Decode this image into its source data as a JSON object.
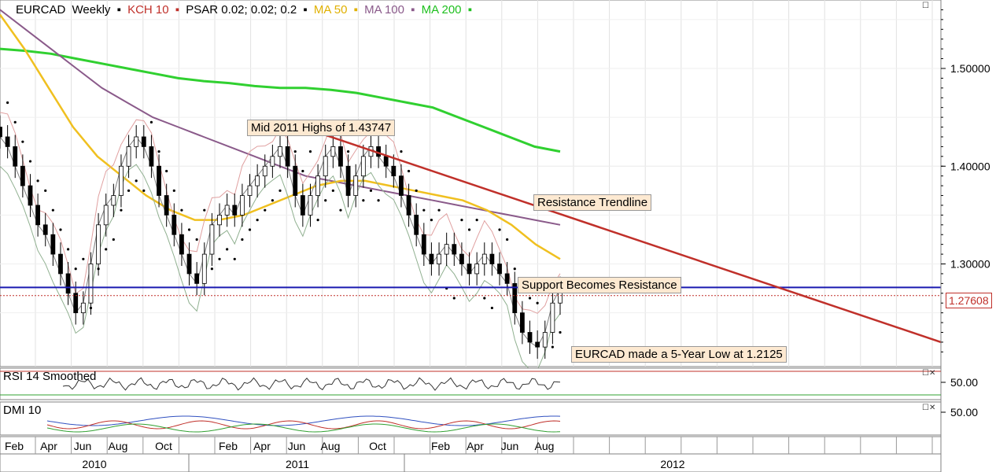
{
  "chart_data": {
    "type": "candlestick",
    "symbol": "EURCAD",
    "timeframe": "Weekly",
    "indicators": [
      {
        "name": "KCH 10",
        "color": "#c0302a"
      },
      {
        "name": "PSAR 0.02; 0.02; 0.2",
        "color": "#000000"
      },
      {
        "name": "MA 50",
        "color": "#f0c020"
      },
      {
        "name": "MA 100",
        "color": "#8a5a8a"
      },
      {
        "name": "MA 200",
        "color": "#30d030"
      }
    ],
    "price_axis": {
      "ticks": [
        "1.50000",
        "1.40000",
        "1.30000"
      ],
      "range": [
        1.195,
        1.57
      ]
    },
    "last_price": "1.27608",
    "x_month_labels": [
      "Feb",
      "Apr",
      "Jun",
      "Aug",
      "Oct",
      "Feb",
      "Apr",
      "Jun",
      "Aug",
      "Oct",
      "Feb",
      "Apr",
      "Jun",
      "Aug"
    ],
    "x_year_labels": [
      "2010",
      "2011",
      "2012"
    ],
    "annotations": [
      "Mid 2011 Highs of 1.43747",
      "Resistance Trendline",
      "Support Becomes Resistance",
      "EURCAD made a 5-Year Low at 1.2125"
    ],
    "support_level": 1.276,
    "resistance_trendline": {
      "from": 1.432,
      "to": 1.22
    },
    "price_path": [
      1.43,
      1.42,
      1.4,
      1.38,
      1.36,
      1.34,
      1.33,
      1.31,
      1.29,
      1.27,
      1.25,
      1.26,
      1.3,
      1.34,
      1.36,
      1.37,
      1.4,
      1.42,
      1.43,
      1.42,
      1.4,
      1.37,
      1.35,
      1.33,
      1.31,
      1.29,
      1.28,
      1.31,
      1.34,
      1.35,
      1.36,
      1.35,
      1.37,
      1.38,
      1.39,
      1.4,
      1.41,
      1.42,
      1.4,
      1.37,
      1.35,
      1.37,
      1.39,
      1.41,
      1.42,
      1.4,
      1.37,
      1.39,
      1.41,
      1.42,
      1.41,
      1.4,
      1.39,
      1.37,
      1.35,
      1.33,
      1.31,
      1.3,
      1.31,
      1.32,
      1.31,
      1.3,
      1.29,
      1.3,
      1.31,
      1.3,
      1.29,
      1.28,
      1.25,
      1.23,
      1.22,
      1.215,
      1.23,
      1.26,
      1.275
    ],
    "ma50": [
      1.555,
      1.52,
      1.48,
      1.44,
      1.41,
      1.39,
      1.37,
      1.355,
      1.345,
      1.345,
      1.35,
      1.36,
      1.37,
      1.38,
      1.385,
      1.385,
      1.38,
      1.375,
      1.37,
      1.365,
      1.355,
      1.34,
      1.32,
      1.305
    ],
    "ma100": [
      1.56,
      1.54,
      1.52,
      1.5,
      1.48,
      1.465,
      1.45,
      1.44,
      1.43,
      1.42,
      1.41,
      1.4,
      1.39,
      1.385,
      1.38,
      1.375,
      1.37,
      1.365,
      1.36,
      1.355,
      1.35,
      1.345,
      1.34
    ],
    "ma200": [
      1.52,
      1.518,
      1.515,
      1.51,
      1.505,
      1.5,
      1.495,
      1.49,
      1.487,
      1.485,
      1.482,
      1.48,
      1.48,
      1.478,
      1.475,
      1.47,
      1.465,
      1.46,
      1.45,
      1.44,
      1.43,
      1.42,
      1.415
    ],
    "rsi_pane": {
      "title": "RSI 14 Smoothed",
      "tick": "50.00"
    },
    "dmi_pane": {
      "title": "DMI 10",
      "tick": "50.00"
    }
  }
}
